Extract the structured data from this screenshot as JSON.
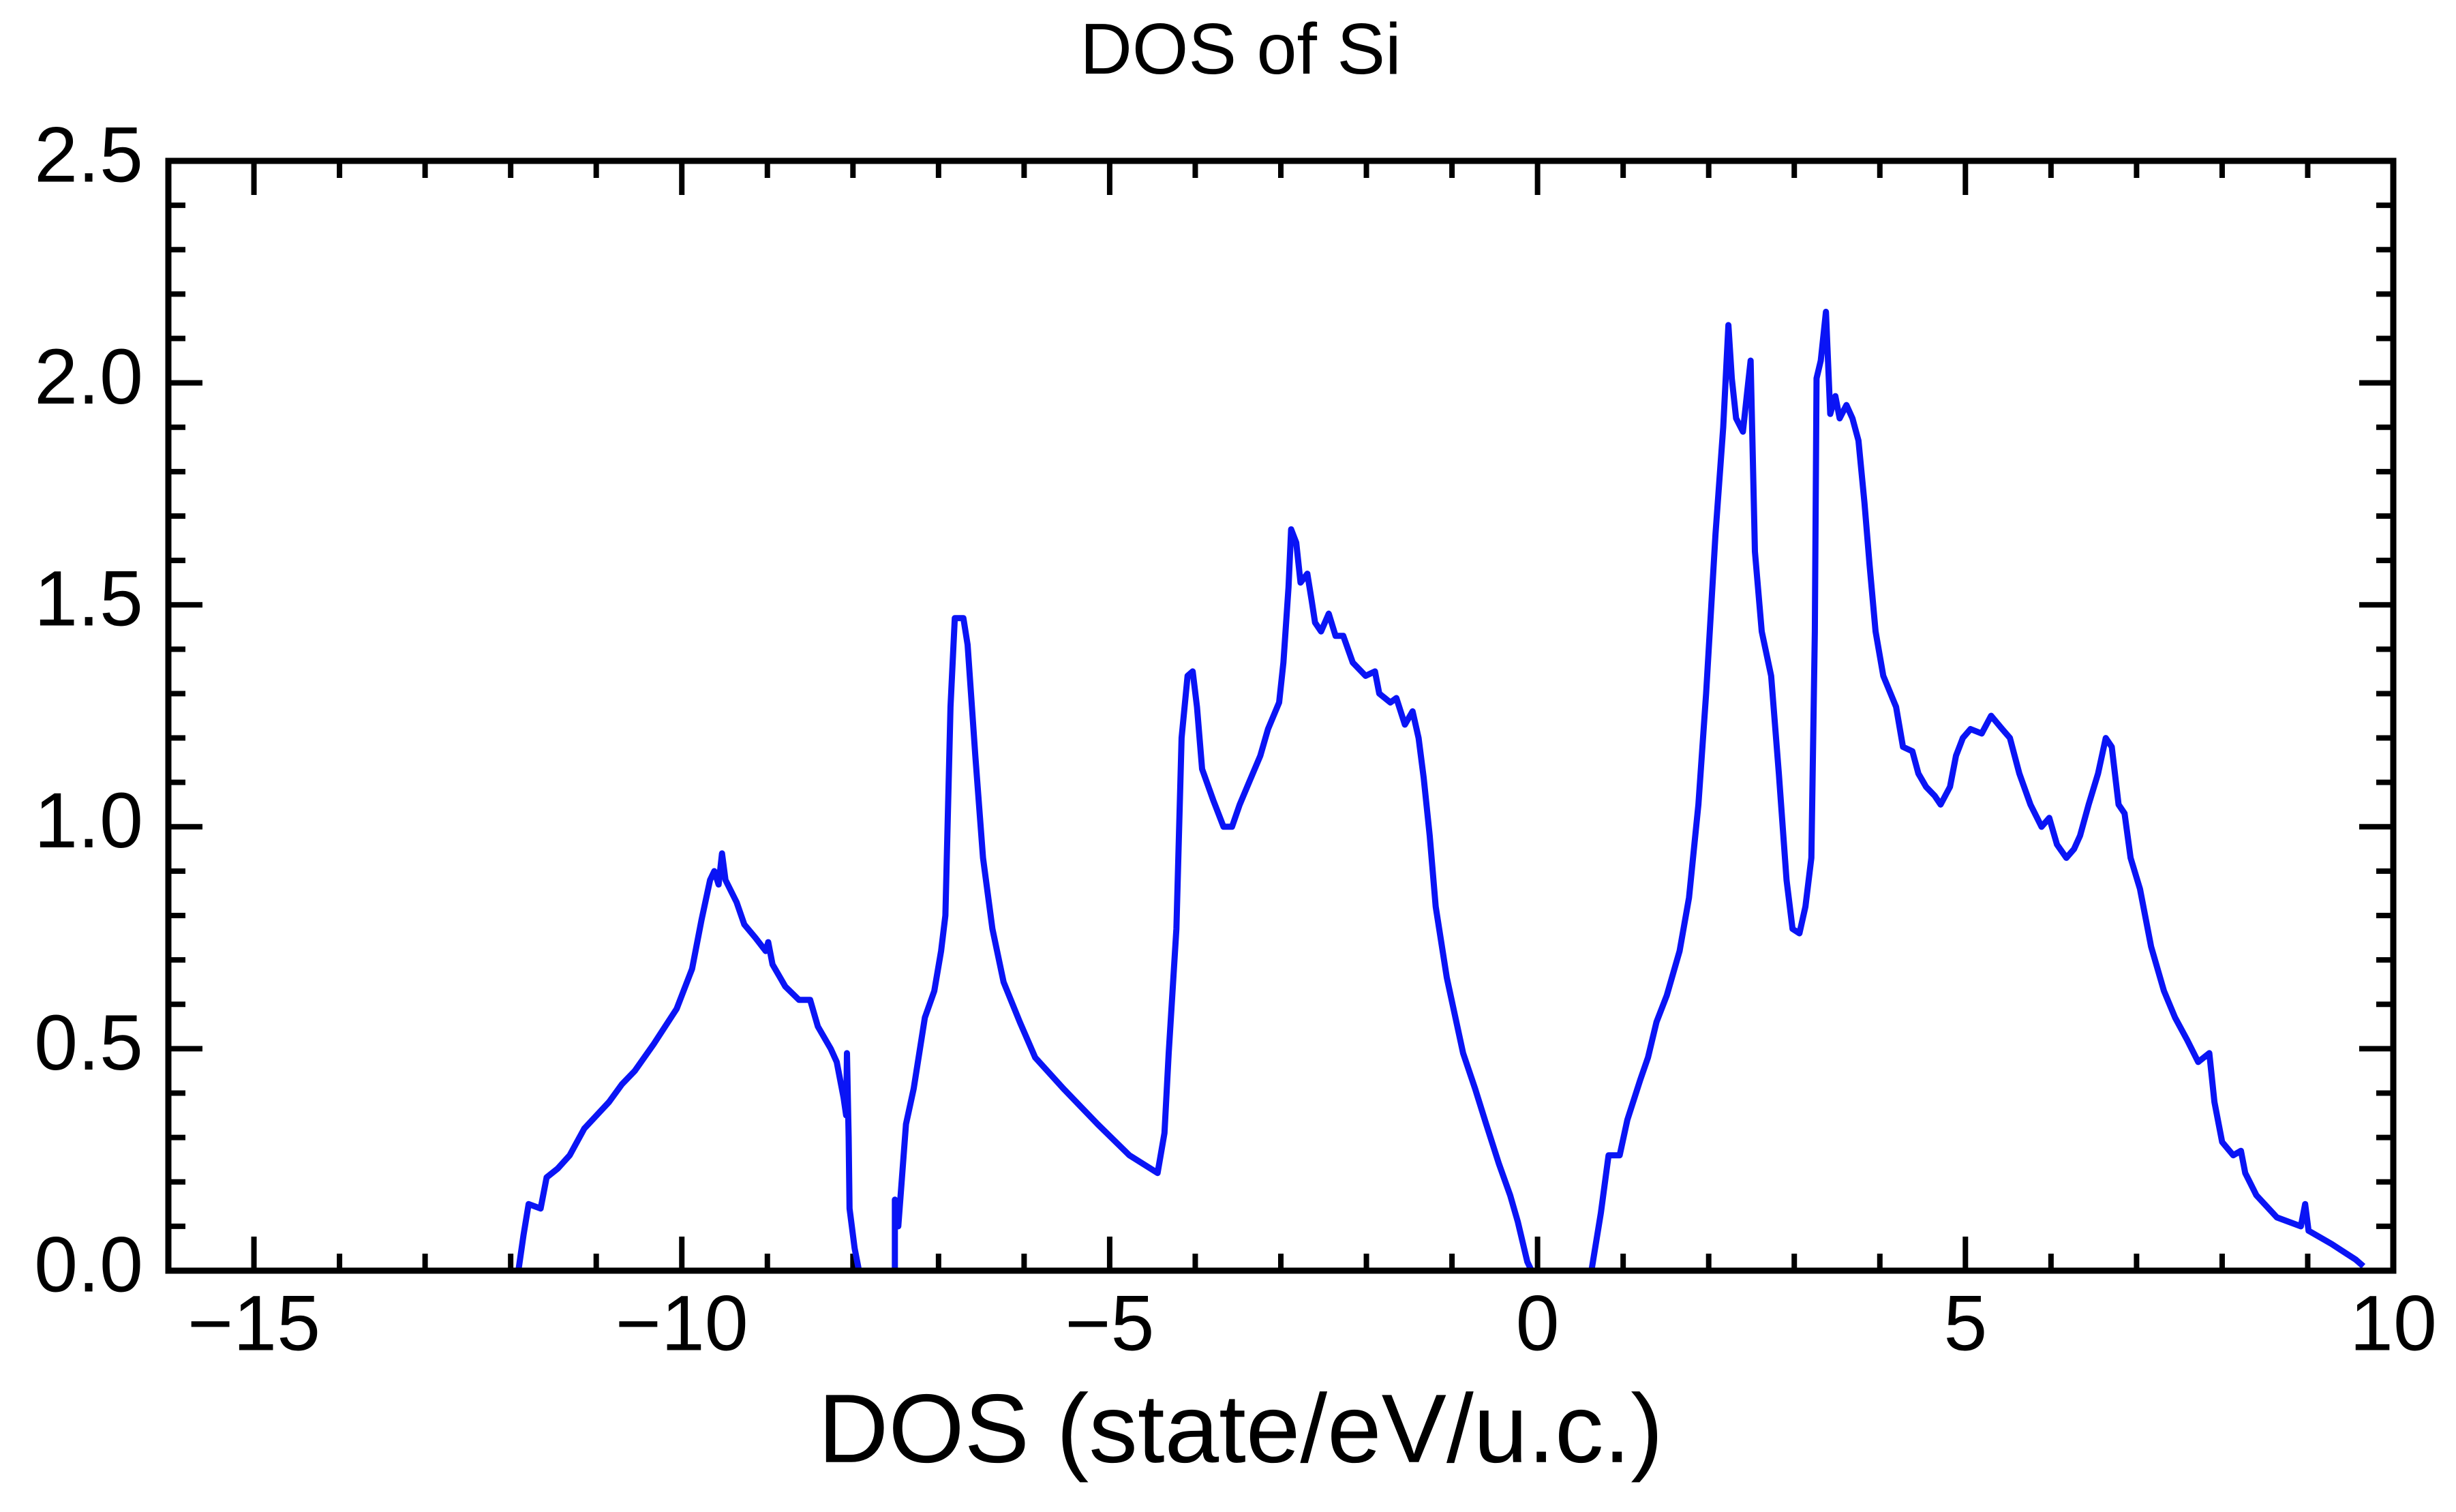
{
  "chart_data": {
    "type": "line",
    "title": "DOS of Si",
    "x_label": "DOS (state/eV/u.c.)",
    "xlim": [
      -16,
      10
    ],
    "ylim": [
      0,
      2.5
    ],
    "xticks": [
      {
        "value": -15,
        "label": "−15"
      },
      {
        "value": -10,
        "label": "−10"
      },
      {
        "value": -5,
        "label": "−5"
      },
      0,
      5,
      10
    ],
    "yticks": [
      {
        "value": 0,
        "label": "0.0"
      },
      0.5,
      {
        "value": 1,
        "label": "1.0"
      },
      1.5,
      {
        "value": 2,
        "label": "2.0"
      },
      2.5
    ],
    "series": [
      {
        "color": "#0a14f5",
        "x": [
          -15.6,
          -11.91,
          -11.85,
          -11.79,
          -11.65,
          -11.58,
          -11.45,
          -11.31,
          -11.14,
          -10.85,
          -10.7,
          -10.55,
          -10.33,
          -10.06,
          -9.88,
          -9.77,
          -9.67,
          -9.62,
          -9.57,
          -9.53,
          -9.49,
          -9.36,
          -9.27,
          -9.14,
          -9.02,
          -8.99,
          -8.94,
          -8.79,
          -8.63,
          -8.5,
          -8.41,
          -8.26,
          -8.19,
          -8.11,
          -8.08,
          -8.07,
          -8.05,
          -8.04,
          -7.98,
          -7.93,
          -7.51,
          -7.51,
          -7.47,
          -7.38,
          -7.29,
          -7.16,
          -7.05,
          -6.97,
          -6.92,
          -6.86,
          -6.81,
          -6.71,
          -6.66,
          -6.57,
          -6.48,
          -6.37,
          -6.24,
          -6.05,
          -5.87,
          -5.54,
          -5.14,
          -4.77,
          -4.44,
          -4.36,
          -4.31,
          -4.22,
          -4.16,
          -4.09,
          -4.03,
          -3.98,
          -3.92,
          -3.79,
          -3.67,
          -3.57,
          -3.48,
          -3.35,
          -3.24,
          -3.15,
          -3.02,
          -2.97,
          -2.91,
          -2.88,
          -2.82,
          -2.77,
          -2.69,
          -2.64,
          -2.6,
          -2.53,
          -2.44,
          -2.36,
          -2.27,
          -2.16,
          -2.01,
          -1.9,
          -1.85,
          -1.72,
          -1.65,
          -1.55,
          -1.46,
          -1.39,
          -1.33,
          -1.26,
          -1.19,
          -1.06,
          -0.87,
          -0.73,
          -0.6,
          -0.45,
          -0.32,
          -0.23,
          -0.12,
          -0.07,
          0.63,
          0.74,
          0.83,
          0.96,
          1.05,
          1.2,
          1.29,
          1.39,
          1.51,
          1.66,
          1.77,
          1.88,
          1.97,
          2.08,
          2.17,
          2.23,
          2.27,
          2.32,
          2.4,
          2.45,
          2.49,
          2.54,
          2.62,
          2.73,
          2.82,
          2.91,
          2.98,
          3.06,
          3.13,
          3.2,
          3.24,
          3.26,
          3.31,
          3.37,
          3.42,
          3.48,
          3.53,
          3.61,
          3.68,
          3.75,
          3.82,
          3.88,
          3.95,
          4.04,
          4.19,
          4.27,
          4.38,
          4.45,
          4.54,
          4.64,
          4.71,
          4.82,
          4.89,
          4.97,
          5.06,
          5.19,
          5.3,
          5.43,
          5.52,
          5.63,
          5.76,
          5.89,
          5.98,
          6.07,
          6.18,
          6.27,
          6.34,
          6.44,
          6.55,
          6.64,
          6.71,
          6.79,
          6.86,
          6.93,
          7.04,
          7.17,
          7.32,
          7.45,
          7.59,
          7.72,
          7.85,
          7.91,
          8.0,
          8.13,
          8.22,
          8.27,
          8.4,
          8.64,
          8.92,
          8.97,
          9.01,
          9.28,
          9.56,
          9.65
        ],
        "values": [
          0,
          0,
          0.08,
          0.15,
          0.14,
          0.21,
          0.23,
          0.26,
          0.32,
          0.38,
          0.42,
          0.45,
          0.51,
          0.59,
          0.68,
          0.79,
          0.88,
          0.9,
          0.87,
          0.94,
          0.88,
          0.83,
          0.78,
          0.75,
          0.72,
          0.74,
          0.69,
          0.64,
          0.61,
          0.61,
          0.55,
          0.5,
          0.47,
          0.39,
          0.35,
          0.49,
          0.3,
          0.14,
          0.05,
          0,
          0,
          0.16,
          0.1,
          0.33,
          0.41,
          0.57,
          0.63,
          0.72,
          0.8,
          1.27,
          1.47,
          1.47,
          1.41,
          1.16,
          0.93,
          0.77,
          0.65,
          0.56,
          0.48,
          0.41,
          0.33,
          0.26,
          0.22,
          0.31,
          0.49,
          0.77,
          1.2,
          1.34,
          1.35,
          1.27,
          1.13,
          1.06,
          1.0,
          1.0,
          1.05,
          1.11,
          1.16,
          1.22,
          1.28,
          1.37,
          1.54,
          1.67,
          1.64,
          1.55,
          1.57,
          1.51,
          1.46,
          1.44,
          1.48,
          1.43,
          1.43,
          1.37,
          1.34,
          1.35,
          1.3,
          1.28,
          1.29,
          1.23,
          1.26,
          1.2,
          1.11,
          0.98,
          0.82,
          0.66,
          0.49,
          0.41,
          0.33,
          0.24,
          0.17,
          0.11,
          0.02,
          0,
          0,
          0.13,
          0.26,
          0.26,
          0.34,
          0.43,
          0.48,
          0.56,
          0.62,
          0.72,
          0.84,
          1.05,
          1.3,
          1.66,
          1.9,
          2.13,
          2.01,
          1.92,
          1.89,
          1.98,
          2.05,
          1.62,
          1.44,
          1.34,
          1.12,
          0.88,
          0.77,
          0.76,
          0.82,
          0.93,
          1.44,
          2.01,
          2.05,
          2.16,
          1.93,
          1.97,
          1.92,
          1.95,
          1.92,
          1.87,
          1.73,
          1.59,
          1.44,
          1.34,
          1.27,
          1.18,
          1.17,
          1.12,
          1.09,
          1.07,
          1.05,
          1.09,
          1.16,
          1.2,
          1.22,
          1.21,
          1.25,
          1.22,
          1.2,
          1.12,
          1.05,
          1.0,
          1.02,
          0.96,
          0.93,
          0.95,
          0.98,
          1.05,
          1.12,
          1.2,
          1.18,
          1.05,
          1.03,
          0.93,
          0.86,
          0.73,
          0.63,
          0.57,
          0.52,
          0.47,
          0.49,
          0.38,
          0.29,
          0.26,
          0.27,
          0.22,
          0.17,
          0.12,
          0.1,
          0.15,
          0.09,
          0.06,
          0.025,
          0.01
        ]
      }
    ]
  }
}
